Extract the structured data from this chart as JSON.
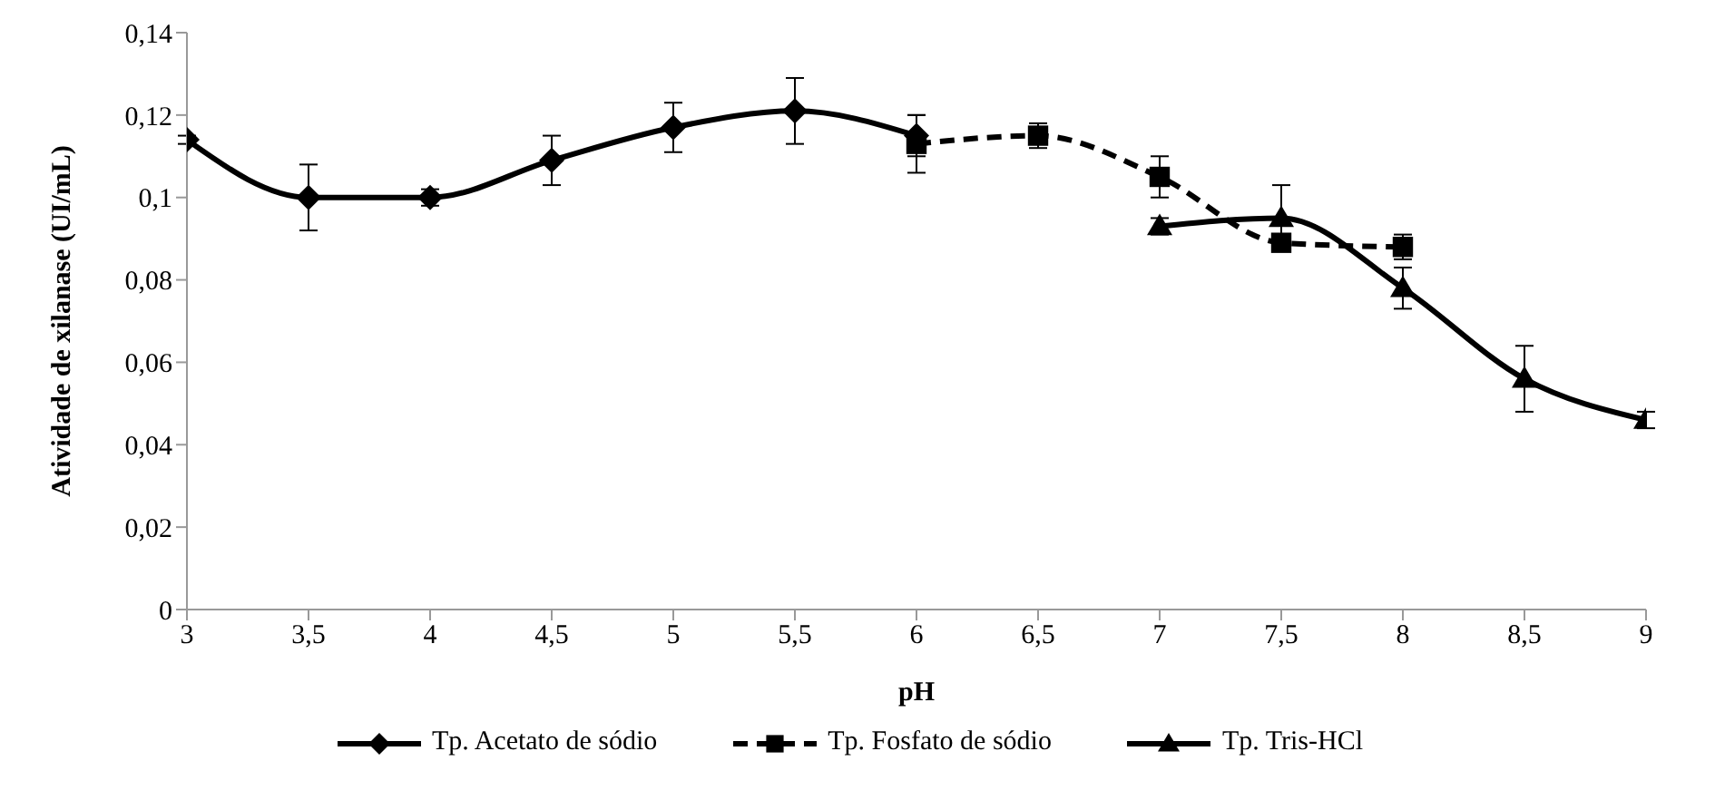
{
  "chart_data": {
    "type": "line",
    "xlabel": "pH",
    "ylabel": "Atividade de xilanase (UI/mL)",
    "xlim": [
      3,
      9
    ],
    "xticks": [
      3,
      {
        "value": 3.5,
        "label": "3,5"
      },
      4,
      {
        "value": 4.5,
        "label": "4,5"
      },
      5,
      {
        "value": 5.5,
        "label": "5,5"
      },
      6,
      {
        "value": 6.5,
        "label": "6,5"
      },
      7,
      {
        "value": 7.5,
        "label": "7,5"
      },
      8,
      {
        "value": 8.5,
        "label": "8,5"
      },
      9
    ],
    "ylim": [
      0,
      0.14
    ],
    "yticks": [
      0,
      {
        "value": 0.02,
        "label": "0,02"
      },
      {
        "value": 0.04,
        "label": "0,04"
      },
      {
        "value": 0.06,
        "label": "0,06"
      },
      {
        "value": 0.08,
        "label": "0,08"
      },
      {
        "value": 0.1,
        "label": "0,1"
      },
      {
        "value": 0.12,
        "label": "0,12"
      },
      {
        "value": 0.14,
        "label": "0,14"
      }
    ],
    "grid": false,
    "legend": "bottom",
    "series": [
      {
        "name": "Tp. Acetato de sódio",
        "color": "#000000",
        "marker": "diamond",
        "line_style": "solid",
        "x": [
          3,
          3.5,
          4,
          4.5,
          5,
          5.5,
          6
        ],
        "values": [
          0.114,
          0.1,
          0.1,
          0.109,
          0.117,
          0.121,
          0.115
        ],
        "errors": [
          0.001,
          0.008,
          0.002,
          0.006,
          0.006,
          0.008,
          0.005
        ]
      },
      {
        "name": "Tp. Fosfato de sódio",
        "color": "#000000",
        "marker": "square",
        "line_style": "dashed",
        "x": [
          6,
          6.5,
          7,
          7.5,
          8
        ],
        "values": [
          0.113,
          0.115,
          0.105,
          0.089,
          0.088
        ],
        "errors": [
          0.007,
          0.003,
          0.005,
          0.002,
          0.003
        ]
      },
      {
        "name": "Tp. Tris-HCl",
        "color": "#000000",
        "marker": "triangle",
        "line_style": "solid",
        "x": [
          7,
          7.5,
          8,
          8.5,
          9
        ],
        "values": [
          0.093,
          0.095,
          0.078,
          0.056,
          0.046
        ],
        "errors": [
          0.002,
          0.008,
          0.005,
          0.008,
          0.002
        ]
      }
    ]
  }
}
